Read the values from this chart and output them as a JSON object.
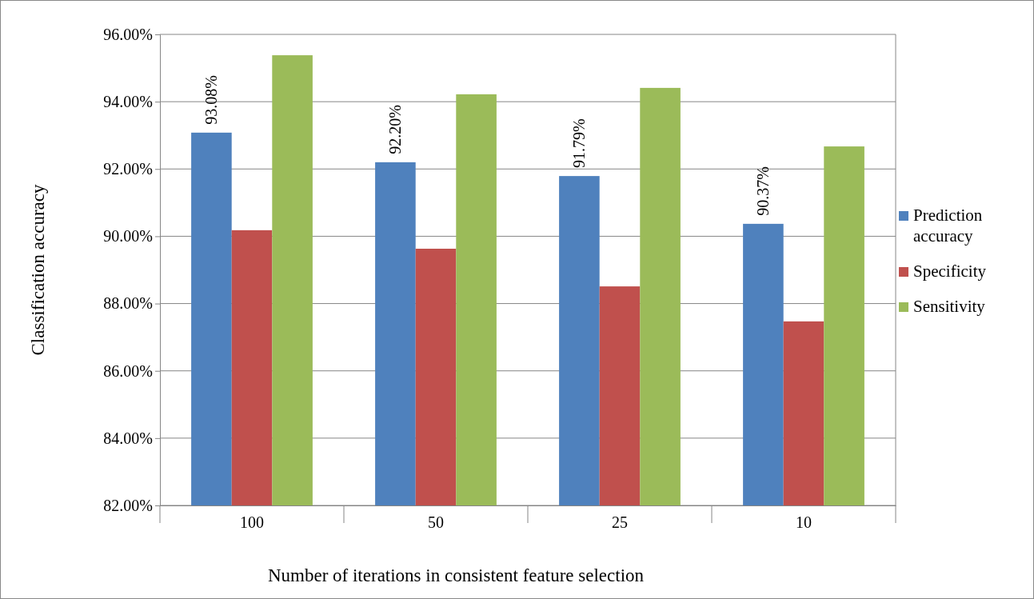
{
  "chart_data": {
    "type": "bar",
    "xlabel": "Number of iterations in consistent feature selection",
    "ylabel": "Classification accuracy",
    "categories": [
      "100",
      "50",
      "25",
      "10"
    ],
    "series": [
      {
        "name": "Prediction accuracy",
        "color": "#4f81bd",
        "values": [
          93.08,
          92.2,
          91.79,
          90.37
        ],
        "value_labels": [
          "93.08%",
          "92.20%",
          "91.79%",
          "90.37%"
        ]
      },
      {
        "name": "Specificity",
        "color": "#c0504d",
        "values": [
          90.18,
          89.63,
          88.51,
          87.47
        ]
      },
      {
        "name": "Sensitivity",
        "color": "#9bbb59",
        "values": [
          95.38,
          94.22,
          94.41,
          92.67
        ]
      }
    ],
    "ylim": [
      82,
      96
    ],
    "yticks": [
      {
        "value": 82,
        "label": "82.00%"
      },
      {
        "value": 84,
        "label": "84.00%"
      },
      {
        "value": 86,
        "label": "86.00%"
      },
      {
        "value": 88,
        "label": "88.00%"
      },
      {
        "value": 90,
        "label": "90.00%"
      },
      {
        "value": 92,
        "label": "92.00%"
      },
      {
        "value": 94,
        "label": "94.00%"
      },
      {
        "value": 96,
        "label": "96.00%"
      }
    ],
    "grid": "y",
    "legend": "right"
  }
}
